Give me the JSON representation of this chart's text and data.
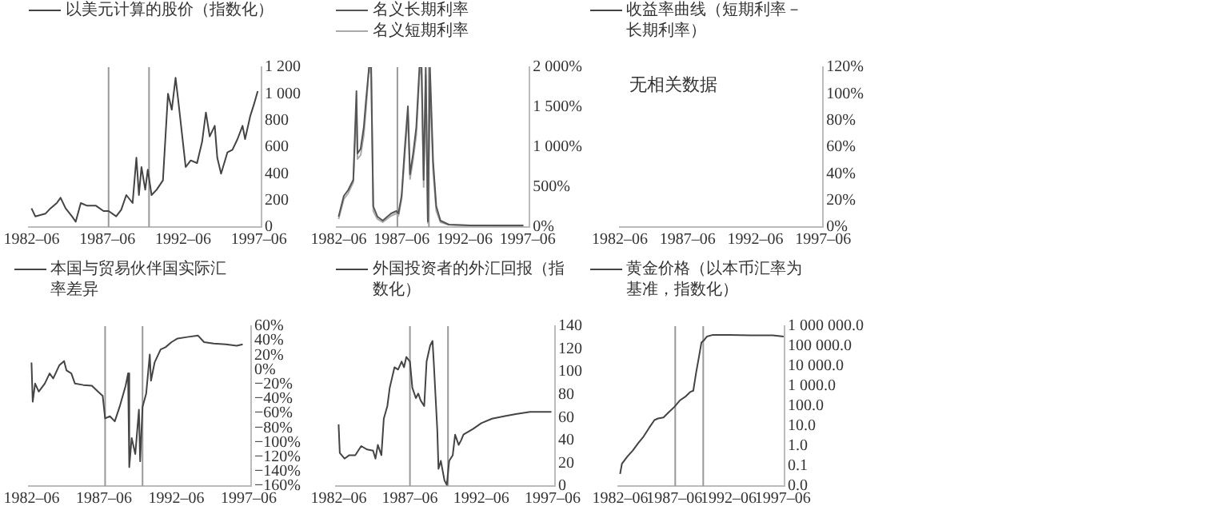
{
  "chart_data": [
    {
      "type": "line",
      "legend": "top left",
      "xlim": [
        "1982-04",
        "1997-08"
      ],
      "xticks": [
        {
          "value": "1982-06",
          "label": "1982–06"
        },
        {
          "value": "1987-06",
          "label": "1987–06"
        },
        {
          "value": "1992-06",
          "label": "1992–06"
        },
        {
          "value": "1997-06",
          "label": "1997–06"
        }
      ],
      "ylim": [
        0,
        1200
      ],
      "yticks": [
        0,
        200,
        400,
        600,
        800,
        {
          "value": 1000,
          "label": "1 000"
        },
        {
          "value": 1200,
          "label": "1 200"
        }
      ],
      "ref_lines": [
        {
          "axis": "x",
          "value": "1987-07",
          "color": "#999999"
        },
        {
          "axis": "x",
          "value": "1990-03",
          "color": "#999999"
        }
      ],
      "x": [
        "1982-06",
        "1982-09",
        "1983-05",
        "1983-09",
        "1984-02",
        "1984-05",
        "1984-09",
        "1985-02",
        "1985-05",
        "1985-09",
        "1986-02",
        "1986-09",
        "1987-03",
        "1987-07",
        "1988-01",
        "1988-05",
        "1988-09",
        "1989-02",
        "1989-05",
        "1989-07",
        "1989-09",
        "1989-12",
        "1990-02",
        "1990-05",
        "1990-09",
        "1991-02",
        "1991-06",
        "1991-09",
        "1991-12",
        "1992-02",
        "1992-06",
        "1992-08",
        "1992-12",
        "1993-05",
        "1993-09",
        "1993-12",
        "1994-03",
        "1994-07",
        "1994-09",
        "1994-12",
        "1995-05",
        "1995-09",
        "1996-01",
        "1996-05",
        "1996-07",
        "1996-11",
        "1997-02",
        "1997-05"
      ],
      "series": [
        {
          "name": "以美元计算的股价（指数化）",
          "color": "#444444",
          "values": [
            140,
            80,
            100,
            140,
            180,
            220,
            140,
            80,
            40,
            180,
            160,
            160,
            120,
            120,
            80,
            130,
            240,
            180,
            520,
            240,
            450,
            280,
            430,
            240,
            280,
            350,
            1000,
            880,
            1120,
            960,
            620,
            450,
            500,
            480,
            640,
            860,
            680,
            760,
            520,
            400,
            560,
            580,
            660,
            760,
            660,
            830,
            920,
            1020
          ]
        }
      ]
    },
    {
      "type": "line",
      "legend": "top left",
      "xlim": [
        "1982-04",
        "1997-08"
      ],
      "xticks": [
        {
          "value": "1982-06",
          "label": "1982–06"
        },
        {
          "value": "1987-06",
          "label": "1987–06"
        },
        {
          "value": "1992-06",
          "label": "1992–06"
        },
        {
          "value": "1997-06",
          "label": "1997–06"
        }
      ],
      "ylim": [
        0,
        2000
      ],
      "yticks": [
        {
          "value": 0,
          "label": "0%"
        },
        {
          "value": 500,
          "label": "500%"
        },
        {
          "value": 1000,
          "label": "1 000%"
        },
        {
          "value": 1500,
          "label": "1 500%"
        },
        {
          "value": 2000,
          "label": "2 000%"
        }
      ],
      "ref_lines": [
        {
          "axis": "x",
          "value": "1987-02",
          "color": "#999999"
        },
        {
          "axis": "x",
          "value": "1989-08",
          "color": "#999999"
        }
      ],
      "x": [
        "1982-06",
        "1982-11",
        "1983-03",
        "1983-08",
        "1983-11",
        "1983-12",
        "1984-03",
        "1984-06",
        "1984-08",
        "1984-11",
        "1985-01",
        "1985-03",
        "1985-07",
        "1985-12",
        "1986-08",
        "1987-01",
        "1987-03",
        "1987-06",
        "1987-09",
        "1987-12",
        "1988-02",
        "1988-05",
        "1988-08",
        "1988-11",
        "1989-01",
        "1989-03",
        "1989-05",
        "1989-07",
        "1989-09",
        "1989-12",
        "1990-03",
        "1990-07",
        "1991-03",
        "1992-11",
        "1995-05",
        "1997-02"
      ],
      "series": [
        {
          "name": "名义长期利率",
          "color": "#555555",
          "values": [
            130,
            390,
            460,
            590,
            1700,
            920,
            980,
            1250,
            1570,
            2000,
            2000,
            260,
            130,
            80,
            170,
            200,
            170,
            390,
            980,
            1510,
            660,
            920,
            1250,
            2000,
            2000,
            590,
            2000,
            70,
            2000,
            820,
            260,
            80,
            30,
            20,
            20,
            20
          ]
        },
        {
          "name": "名义短期利率",
          "color": "#aaaaaa",
          "values": [
            100,
            350,
            420,
            560,
            1500,
            850,
            900,
            1150,
            1450,
            2000,
            1900,
            200,
            100,
            60,
            140,
            170,
            140,
            350,
            900,
            1400,
            600,
            850,
            1150,
            1900,
            2000,
            500,
            1900,
            50,
            1800,
            700,
            200,
            60,
            30,
            20,
            10,
            10
          ]
        }
      ]
    },
    {
      "type": "line",
      "legend": "top",
      "categories": [
        "1982–06",
        "1987–06",
        "1992–06",
        "1997–06"
      ],
      "ylim": [
        0,
        120
      ],
      "yticks": [
        {
          "value": 0,
          "label": "0%"
        },
        {
          "value": 20,
          "label": "20%"
        },
        {
          "value": 40,
          "label": "40%"
        },
        {
          "value": 60,
          "label": "60%"
        },
        {
          "value": 80,
          "label": "80%"
        },
        {
          "value": 100,
          "label": "100%"
        },
        {
          "value": 120,
          "label": "120%"
        }
      ],
      "annotations": [
        "无相关数据"
      ],
      "series": [
        {
          "name": "收益率曲线（短期利率－长期利率）",
          "color": "#444444",
          "values": [
            null,
            null,
            null,
            null
          ]
        }
      ]
    },
    {
      "type": "line",
      "legend": "top",
      "xlim": [
        "1982-04",
        "1997-08"
      ],
      "xticks": [
        {
          "value": "1982-06",
          "label": "1982–06"
        },
        {
          "value": "1987-06",
          "label": "1987–06"
        },
        {
          "value": "1992-06",
          "label": "1992–06"
        },
        {
          "value": "1997-06",
          "label": "1997–06"
        }
      ],
      "ylim": [
        -160,
        60
      ],
      "yticks": [
        {
          "value": -160,
          "label": "−160%"
        },
        {
          "value": -140,
          "label": "−140%"
        },
        {
          "value": -120,
          "label": "−120%"
        },
        {
          "value": -100,
          "label": "−100%"
        },
        {
          "value": -80,
          "label": "−80%"
        },
        {
          "value": -60,
          "label": "−60%"
        },
        {
          "value": -40,
          "label": "−40%"
        },
        {
          "value": -20,
          "label": "−20%"
        },
        {
          "value": 0,
          "label": "0%"
        },
        {
          "value": 20,
          "label": "20%"
        },
        {
          "value": 40,
          "label": "40%"
        },
        {
          "value": 60,
          "label": "60%"
        }
      ],
      "ref_lines": [
        {
          "axis": "x",
          "value": "1987-07",
          "color": "#999999"
        },
        {
          "axis": "x",
          "value": "1990-02",
          "color": "#999999"
        }
      ],
      "x": [
        "1982-06",
        "1982-07",
        "1982-09",
        "1982-12",
        "1983-05",
        "1983-09",
        "1983-12",
        "1984-05",
        "1984-09",
        "1984-11",
        "1985-03",
        "1985-06",
        "1986-01",
        "1986-08",
        "1987-01",
        "1987-05",
        "1987-07",
        "1987-11",
        "1988-03",
        "1988-07",
        "1988-12",
        "1989-02",
        "1989-03",
        "1989-05",
        "1989-08",
        "1989-11",
        "1989-12",
        "1990-02",
        "1990-05",
        "1990-08",
        "1990-09",
        "1990-12",
        "1991-05",
        "1991-09",
        "1992-02",
        "1992-07",
        "1993-03",
        "1993-12",
        "1994-05",
        "1995-01",
        "1995-11",
        "1996-08",
        "1997-01"
      ],
      "series": [
        {
          "name": "本国与贸易伙伴国实际汇率差异",
          "color": "#444444",
          "values": [
            10,
            -44,
            -19,
            -30,
            -19,
            -5,
            -12,
            6,
            12,
            -1,
            -5,
            -19,
            -21,
            -22,
            -30,
            -36,
            -67,
            -64,
            -71,
            -51,
            -22,
            -5,
            -134,
            -94,
            -116,
            -55,
            -126,
            -51,
            -33,
            21,
            -15,
            10,
            28,
            31,
            38,
            43,
            45,
            47,
            38,
            36,
            35,
            33,
            35
          ]
        }
      ]
    },
    {
      "type": "line",
      "legend": "top left",
      "xlim": [
        "1982-04",
        "1997-08"
      ],
      "xticks": [
        {
          "value": "1982-06",
          "label": "1982–06"
        },
        {
          "value": "1987-06",
          "label": "1987–06"
        },
        {
          "value": "1992-06",
          "label": "1992–06"
        },
        {
          "value": "1997-06",
          "label": "1997–06"
        }
      ],
      "ylim": [
        0,
        140
      ],
      "yticks": [
        0,
        20,
        40,
        60,
        80,
        100,
        120,
        140
      ],
      "ref_lines": [
        {
          "axis": "x",
          "value": "1987-06",
          "color": "#999999"
        },
        {
          "axis": "x",
          "value": "1990-02",
          "color": "#999999"
        }
      ],
      "x": [
        "1982-06",
        "1982-07",
        "1982-11",
        "1983-03",
        "1983-08",
        "1984-01",
        "1984-06",
        "1984-11",
        "1985-01",
        "1985-03",
        "1985-06",
        "1985-08",
        "1985-11",
        "1986-01",
        "1986-05",
        "1986-08",
        "1986-11",
        "1987-01",
        "1987-03",
        "1987-06",
        "1987-08",
        "1987-11",
        "1988-01",
        "1988-03",
        "1988-06",
        "1988-08",
        "1988-11",
        "1989-01",
        "1989-02",
        "1989-05",
        "1989-06",
        "1989-08",
        "1989-11",
        "1990-01",
        "1990-03",
        "1990-06",
        "1990-08",
        "1990-11",
        "1991-01",
        "1991-03",
        "1991-11",
        "1992-06",
        "1993-03",
        "1994-01",
        "1994-11",
        "1995-11",
        "1997-05"
      ],
      "series": [
        {
          "name": "外国投资者的外汇回报（指数化）",
          "color": "#444444",
          "values": [
            54,
            29,
            24,
            27,
            27,
            35,
            32,
            31,
            24,
            36,
            27,
            59,
            70,
            86,
            104,
            102,
            109,
            104,
            113,
            109,
            86,
            77,
            81,
            75,
            70,
            109,
            123,
            127,
            109,
            49,
            15,
            22,
            5,
            1,
            22,
            27,
            45,
            36,
            40,
            45,
            50,
            55,
            59,
            61,
            63,
            65,
            65
          ]
        }
      ]
    },
    {
      "type": "line",
      "legend": "top",
      "log": "y",
      "xlim": [
        "1982-04",
        "1997-08"
      ],
      "xticks": [
        {
          "value": "1982-06",
          "label": "1982–06"
        },
        {
          "value": "1987-06",
          "label": "1987–06"
        },
        {
          "value": "1992-06",
          "label": "1992–06"
        },
        {
          "value": "1997-06",
          "label": "1997–06"
        }
      ],
      "ylim": [
        0.01,
        1000000
      ],
      "yticks": [
        {
          "value": 0.01,
          "label": "0.0"
        },
        {
          "value": 0.1,
          "label": "0.1"
        },
        {
          "value": 1,
          "label": "1.0"
        },
        {
          "value": 10,
          "label": "10.0"
        },
        {
          "value": 100,
          "label": "100.0"
        },
        {
          "value": 1000,
          "label": "1 000.0"
        },
        {
          "value": 10000,
          "label": "10 000.0"
        },
        {
          "value": 100000,
          "label": "100 000.0"
        },
        {
          "value": 1000000,
          "label": "1 000 000.0"
        }
      ],
      "ref_lines": [
        {
          "axis": "x",
          "value": "1987-07",
          "color": "#999999"
        },
        {
          "axis": "x",
          "value": "1990-02",
          "color": "#999999"
        }
      ],
      "x": [
        "1982-06",
        "1982-08",
        "1983-02",
        "1983-08",
        "1984-02",
        "1984-08",
        "1985-02",
        "1985-08",
        "1985-12",
        "1986-06",
        "1986-12",
        "1987-06",
        "1987-12",
        "1988-06",
        "1988-12",
        "1989-03",
        "1989-06",
        "1989-09",
        "1989-12",
        "1990-03",
        "1990-06",
        "1990-12",
        "1992-07",
        "1994-07",
        "1996-07",
        "1997-07"
      ],
      "series": [
        {
          "name": "黄金价格（以本币汇率为基准，指数化）",
          "color": "#444444",
          "values": [
            0.04,
            0.13,
            0.3,
            0.6,
            1.4,
            3,
            8,
            20,
            24,
            27,
            50,
            90,
            190,
            290,
            520,
            590,
            4300,
            25000,
            150000,
            200000,
            300000,
            360000,
            360000,
            350000,
            350000,
            300000
          ]
        }
      ]
    }
  ]
}
